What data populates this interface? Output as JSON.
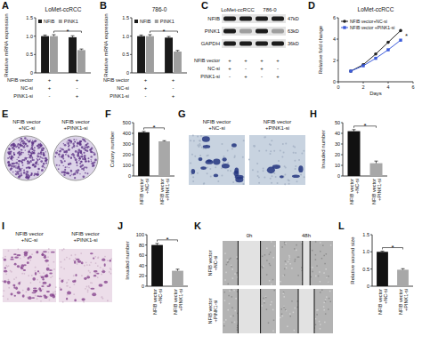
{
  "chart_data": [
    {
      "panel_label": "A",
      "type": "bar",
      "title": "LoMet-ccRCC",
      "y_label": "Relative mRNA expression",
      "categories": [
        null,
        null
      ],
      "series": [
        {
          "name": "NFIB",
          "color": "#1a1a1a",
          "values": [
            1.0,
            0.97
          ],
          "errors": [
            0.03,
            0.04
          ]
        },
        {
          "name": "PINK1",
          "color": "#9e9e9e",
          "values": [
            1.0,
            0.62
          ],
          "errors": [
            0.04,
            0.03
          ]
        }
      ],
      "ylim": [
        0,
        1.5
      ],
      "yticks": [
        0,
        0.5,
        {
          "value": 1,
          "label": "1.0"
        },
        1.5
      ],
      "grid": false,
      "legend": "top",
      "annotation": "*",
      "conditions": [
        {
          "name": "NFIB vector",
          "signs": [
            "+",
            "+"
          ]
        },
        {
          "name": "NC-si",
          "signs": [
            "+",
            "-"
          ]
        },
        {
          "name": "PINK1-si",
          "signs": [
            "-",
            "+"
          ]
        }
      ]
    },
    {
      "panel_label": "B",
      "type": "bar",
      "title": "786-0",
      "y_label": "Relative mRNA expression",
      "categories": [
        null,
        null
      ],
      "series": [
        {
          "name": "NFIB",
          "color": "#1a1a1a",
          "values": [
            1.0,
            0.96
          ],
          "errors": [
            0.03,
            0.03
          ]
        },
        {
          "name": "PINK1",
          "color": "#9e9e9e",
          "values": [
            1.0,
            0.58
          ],
          "errors": [
            0.04,
            0.03
          ]
        }
      ],
      "ylim": [
        0,
        1.5
      ],
      "yticks": [
        0,
        0.5,
        {
          "value": 1,
          "label": "1.0"
        },
        1.5
      ],
      "grid": false,
      "legend": "top",
      "annotation": "*",
      "conditions": [
        {
          "name": "NFIB vector",
          "signs": [
            "+",
            "+"
          ]
        },
        {
          "name": "NC-si",
          "signs": [
            "+",
            "-"
          ]
        },
        {
          "name": "PINK1-si",
          "signs": [
            "-",
            "+"
          ]
        }
      ]
    },
    {
      "panel_label": "D",
      "type": "line",
      "title": "LoMet-ccRCC",
      "x_label": "Days",
      "y_label": "Relative fold change",
      "x": [
        1,
        2,
        3,
        4,
        5
      ],
      "series": [
        {
          "name": "NFIB vector+NC-si",
          "color": "#222222",
          "marker": "circle",
          "values": [
            1.0,
            1.6,
            2.6,
            3.7,
            4.8
          ]
        },
        {
          "name": "NFIB vector +PINK1-si",
          "color": "#3b5bdb",
          "marker": "square",
          "values": [
            1.0,
            1.5,
            2.2,
            3.0,
            3.9
          ]
        }
      ],
      "xlim": [
        0,
        6
      ],
      "xticks": [
        0,
        2,
        4,
        6
      ],
      "ylim": [
        0,
        6
      ],
      "yticks": [
        0,
        2,
        4,
        6
      ],
      "grid": false,
      "legend": "top-left",
      "annotation": "*"
    },
    {
      "panel_label": "F",
      "type": "bar",
      "y_label": "Colony number",
      "categories": [
        "NFIB vector +NC-si",
        "NFIB vector +PINK1-si"
      ],
      "values": [
        410,
        325
      ],
      "errors": [
        8,
        6
      ],
      "colors": [
        "#111111",
        "#a8a8a8"
      ],
      "ylim": [
        0,
        500
      ],
      "yticks": [
        0,
        100,
        200,
        300,
        400,
        500
      ],
      "grid": false,
      "annotation": "*"
    },
    {
      "panel_label": "H",
      "type": "bar",
      "y_label": "Invaded number",
      "categories": [
        "NFIB vector +NC-si",
        "NFIB vector +PINK1-si"
      ],
      "values": [
        42,
        12
      ],
      "errors": [
        1.5,
        2
      ],
      "colors": [
        "#111111",
        "#a8a8a8"
      ],
      "ylim": [
        0,
        50
      ],
      "yticks": [
        0,
        10,
        20,
        30,
        40,
        50
      ],
      "grid": false,
      "annotation": "*"
    },
    {
      "panel_label": "J",
      "type": "bar",
      "y_label": "Invaded number",
      "categories": [
        "NFIB vector +NC-si",
        "NFIB vector +PINK1-si"
      ],
      "values": [
        80,
        30
      ],
      "errors": [
        3,
        3
      ],
      "colors": [
        "#111111",
        "#a8a8a8"
      ],
      "ylim": [
        0,
        100
      ],
      "yticks": [
        0,
        20,
        40,
        60,
        80,
        100
      ],
      "grid": false,
      "annotation": "*"
    },
    {
      "panel_label": "L",
      "type": "bar",
      "y_label": "Relative wound size",
      "categories": [
        "NFIB vector +NC-si",
        "NFIB vector +PINK1-si"
      ],
      "values": [
        1.0,
        0.48
      ],
      "errors": [
        0.02,
        0.03
      ],
      "colors": [
        "#111111",
        "#a8a8a8"
      ],
      "ylim": [
        0,
        1.5
      ],
      "yticks": [
        0,
        0.5,
        {
          "value": 1,
          "label": "1.0"
        },
        1.5
      ],
      "grid": false,
      "annotation": "*"
    }
  ],
  "figure_panels": [
    {
      "panel_label": "C",
      "type": "blot",
      "columns": [
        "LoMet-ccRCC",
        "786-0"
      ],
      "bands": [
        {
          "name": "NFIB",
          "size": "47kD"
        },
        {
          "name": "PINK1",
          "size": "63kD"
        },
        {
          "name": "GAPDH",
          "size": "36kD"
        }
      ],
      "conditions": [
        {
          "name": "NFIB vector",
          "signs": [
            "+",
            "+",
            "+",
            "+"
          ]
        },
        {
          "name": "NC-si",
          "signs": [
            "+",
            "-",
            "+",
            "-"
          ]
        },
        {
          "name": "PINK1-si",
          "signs": [
            "-",
            "+",
            "-",
            "+"
          ]
        }
      ]
    },
    {
      "panel_label": "E",
      "type": "image",
      "images": [
        "NFIB vector +NC-si",
        "NFIB vector +PINK1-si"
      ]
    },
    {
      "panel_label": "G",
      "type": "image",
      "images": [
        "NFIB vector +NC-si",
        "NFIB vector +PINK1-si"
      ]
    },
    {
      "panel_label": "I",
      "type": "image",
      "images": [
        "NFIB vector +NC-si",
        "NFIB vector +PINK1-si"
      ]
    },
    {
      "panel_label": "K",
      "type": "wound",
      "times": [
        "0h",
        "48h"
      ],
      "rows": [
        "NFIB vector +NC-si",
        "NFIB vector +PINK1-si"
      ]
    }
  ]
}
